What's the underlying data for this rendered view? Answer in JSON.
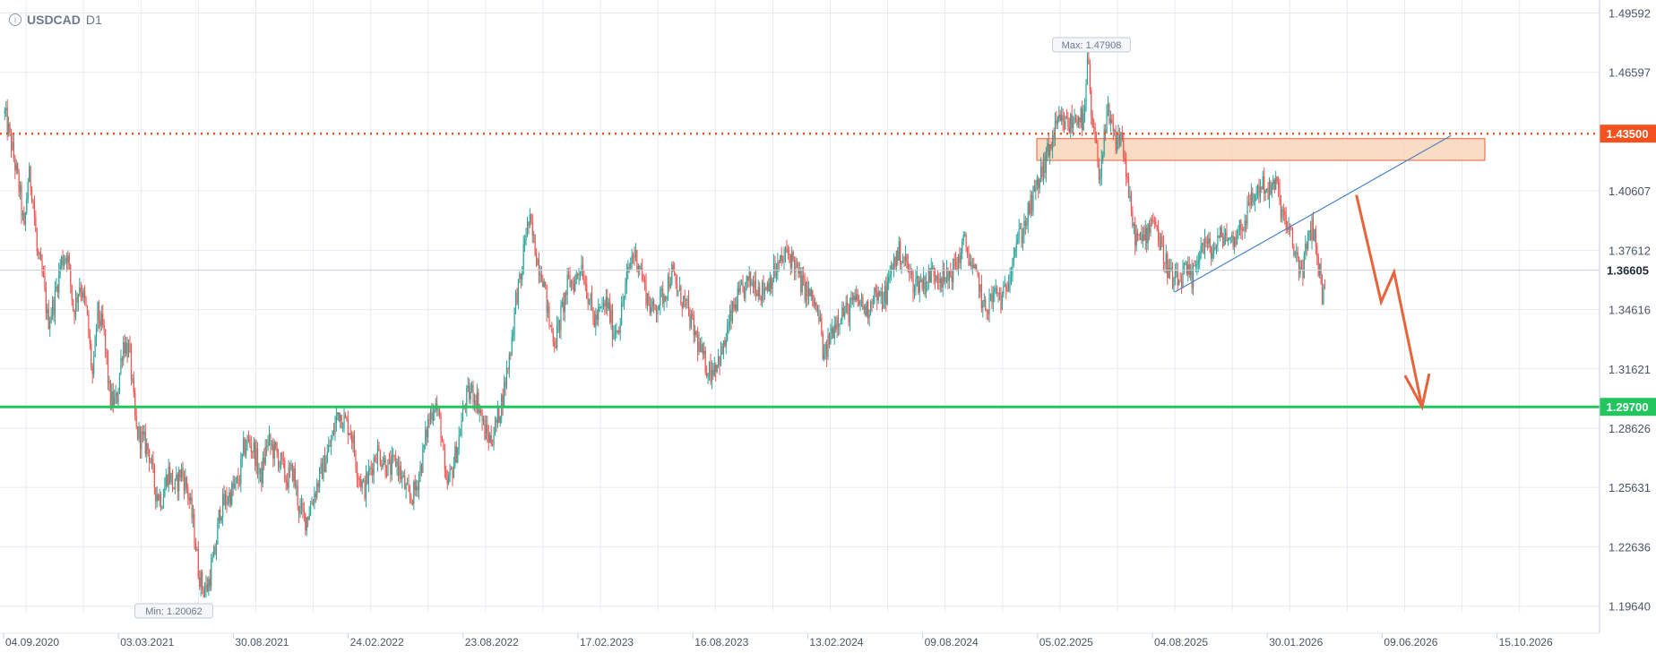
{
  "header": {
    "info_icon": "info-icon",
    "symbol": "USDCAD",
    "timeframe": "D1"
  },
  "colors": {
    "up": "#26a69a",
    "down": "#ef5350",
    "grid": "#e6ebf2",
    "resistance": "#f4511e",
    "support": "#22c55e",
    "zone_fill": "#f8d6b8",
    "zone_stroke": "#e8623a",
    "trend": "#4a84c8",
    "arrow": "#e8623a",
    "axis_text": "#4a5568"
  },
  "chart_data": {
    "type": "candlestick",
    "symbol": "USDCAD",
    "timeframe": "D1",
    "x_ticks": [
      "04.09.2020",
      "03.03.2021",
      "30.08.2021",
      "24.02.2022",
      "23.08.2022",
      "17.02.2023",
      "16.08.2023",
      "13.02.2024",
      "09.08.2024",
      "05.02.2025",
      "04.08.2025",
      "30.01.2026",
      "09.06.2026",
      "15.10.2026"
    ],
    "y_ticks": [
      1.49592,
      1.46597,
      1.40607,
      1.37612,
      1.34616,
      1.31621,
      1.28626,
      1.25631,
      1.22636,
      1.1964
    ],
    "ylim": [
      1.1935,
      1.5025
    ],
    "grid": true,
    "current_price": "1.36605",
    "extremes": {
      "max_label": "Max: 1.47908",
      "max": 1.47908,
      "min_label": "Min: 1.20062",
      "min": 1.20062
    },
    "levels": [
      {
        "name": "resistance",
        "value": 1.435,
        "label": "1.43500",
        "style": "dotted"
      },
      {
        "name": "support",
        "value": 1.297,
        "label": "1.29700",
        "style": "solid"
      }
    ],
    "zone": {
      "from": 1.4215,
      "to": 1.4325
    },
    "path": [
      [
        0,
        1.445
      ],
      [
        6,
        1.43
      ],
      [
        10,
        1.418
      ],
      [
        14,
        1.405
      ],
      [
        18,
        1.385
      ],
      [
        22,
        1.415
      ],
      [
        26,
        1.405
      ],
      [
        30,
        1.375
      ],
      [
        36,
        1.36
      ],
      [
        40,
        1.34
      ],
      [
        46,
        1.35
      ],
      [
        52,
        1.37
      ],
      [
        58,
        1.375
      ],
      [
        64,
        1.345
      ],
      [
        70,
        1.36
      ],
      [
        76,
        1.345
      ],
      [
        82,
        1.31
      ],
      [
        86,
        1.345
      ],
      [
        92,
        1.335
      ],
      [
        98,
        1.3
      ],
      [
        104,
        1.3
      ],
      [
        110,
        1.33
      ],
      [
        116,
        1.325
      ],
      [
        122,
        1.285
      ],
      [
        128,
        1.28
      ],
      [
        134,
        1.275
      ],
      [
        140,
        1.255
      ],
      [
        146,
        1.25
      ],
      [
        152,
        1.265
      ],
      [
        158,
        1.255
      ],
      [
        164,
        1.265
      ],
      [
        170,
        1.255
      ],
      [
        176,
        1.235
      ],
      [
        180,
        1.215
      ],
      [
        184,
        1.205
      ],
      [
        188,
        1.205
      ],
      [
        192,
        1.215
      ],
      [
        196,
        1.225
      ],
      [
        200,
        1.245
      ],
      [
        206,
        1.25
      ],
      [
        212,
        1.255
      ],
      [
        218,
        1.26
      ],
      [
        222,
        1.275
      ],
      [
        226,
        1.28
      ],
      [
        232,
        1.275
      ],
      [
        238,
        1.26
      ],
      [
        244,
        1.28
      ],
      [
        250,
        1.275
      ],
      [
        256,
        1.27
      ],
      [
        262,
        1.26
      ],
      [
        268,
        1.265
      ],
      [
        274,
        1.245
      ],
      [
        280,
        1.24
      ],
      [
        286,
        1.25
      ],
      [
        292,
        1.26
      ],
      [
        298,
        1.27
      ],
      [
        304,
        1.28
      ],
      [
        310,
        1.295
      ],
      [
        316,
        1.29
      ],
      [
        322,
        1.285
      ],
      [
        328,
        1.265
      ],
      [
        334,
        1.255
      ],
      [
        340,
        1.265
      ],
      [
        346,
        1.275
      ],
      [
        352,
        1.27
      ],
      [
        358,
        1.265
      ],
      [
        364,
        1.27
      ],
      [
        370,
        1.26
      ],
      [
        376,
        1.25
      ],
      [
        382,
        1.255
      ],
      [
        388,
        1.27
      ],
      [
        394,
        1.29
      ],
      [
        400,
        1.3
      ],
      [
        406,
        1.285
      ],
      [
        410,
        1.255
      ],
      [
        416,
        1.265
      ],
      [
        422,
        1.28
      ],
      [
        428,
        1.3
      ],
      [
        434,
        1.305
      ],
      [
        440,
        1.3
      ],
      [
        446,
        1.285
      ],
      [
        452,
        1.28
      ],
      [
        458,
        1.29
      ],
      [
        464,
        1.305
      ],
      [
        470,
        1.325
      ],
      [
        476,
        1.355
      ],
      [
        480,
        1.36
      ],
      [
        484,
        1.385
      ],
      [
        488,
        1.39
      ],
      [
        492,
        1.38
      ],
      [
        496,
        1.37
      ],
      [
        500,
        1.365
      ],
      [
        506,
        1.34
      ],
      [
        512,
        1.33
      ],
      [
        518,
        1.345
      ],
      [
        524,
        1.36
      ],
      [
        530,
        1.36
      ],
      [
        536,
        1.37
      ],
      [
        542,
        1.355
      ],
      [
        548,
        1.34
      ],
      [
        554,
        1.345
      ],
      [
        560,
        1.35
      ],
      [
        566,
        1.335
      ],
      [
        572,
        1.34
      ],
      [
        578,
        1.36
      ],
      [
        584,
        1.375
      ],
      [
        590,
        1.37
      ],
      [
        596,
        1.355
      ],
      [
        602,
        1.345
      ],
      [
        608,
        1.35
      ],
      [
        614,
        1.355
      ],
      [
        620,
        1.365
      ],
      [
        626,
        1.355
      ],
      [
        632,
        1.35
      ],
      [
        638,
        1.34
      ],
      [
        644,
        1.33
      ],
      [
        650,
        1.32
      ],
      [
        656,
        1.315
      ],
      [
        662,
        1.32
      ],
      [
        668,
        1.325
      ],
      [
        674,
        1.34
      ],
      [
        680,
        1.35
      ],
      [
        686,
        1.355
      ],
      [
        692,
        1.36
      ],
      [
        698,
        1.36
      ],
      [
        704,
        1.355
      ],
      [
        710,
        1.36
      ],
      [
        716,
        1.365
      ],
      [
        722,
        1.37
      ],
      [
        728,
        1.375
      ],
      [
        734,
        1.37
      ],
      [
        740,
        1.36
      ],
      [
        746,
        1.355
      ],
      [
        752,
        1.35
      ],
      [
        758,
        1.34
      ],
      [
        762,
        1.32
      ],
      [
        766,
        1.33
      ],
      [
        772,
        1.34
      ],
      [
        778,
        1.345
      ],
      [
        784,
        1.345
      ],
      [
        790,
        1.35
      ],
      [
        796,
        1.35
      ],
      [
        802,
        1.345
      ],
      [
        808,
        1.355
      ],
      [
        814,
        1.35
      ],
      [
        820,
        1.355
      ],
      [
        826,
        1.37
      ],
      [
        832,
        1.375
      ],
      [
        838,
        1.37
      ],
      [
        844,
        1.36
      ],
      [
        850,
        1.36
      ],
      [
        856,
        1.36
      ],
      [
        862,
        1.365
      ],
      [
        868,
        1.365
      ],
      [
        874,
        1.36
      ],
      [
        880,
        1.365
      ],
      [
        886,
        1.37
      ],
      [
        892,
        1.38
      ],
      [
        896,
        1.375
      ],
      [
        900,
        1.365
      ],
      [
        906,
        1.36
      ],
      [
        910,
        1.345
      ],
      [
        916,
        1.35
      ],
      [
        922,
        1.355
      ],
      [
        928,
        1.35
      ],
      [
        934,
        1.365
      ],
      [
        940,
        1.38
      ],
      [
        946,
        1.385
      ],
      [
        952,
        1.395
      ],
      [
        958,
        1.405
      ],
      [
        964,
        1.415
      ],
      [
        970,
        1.425
      ],
      [
        976,
        1.435
      ],
      [
        980,
        1.44
      ],
      [
        986,
        1.44
      ],
      [
        992,
        1.44
      ],
      [
        998,
        1.445
      ],
      [
        1004,
        1.44
      ],
      [
        1007,
        1.475
      ],
      [
        1010,
        1.445
      ],
      [
        1014,
        1.43
      ],
      [
        1018,
        1.415
      ],
      [
        1022,
        1.43
      ],
      [
        1026,
        1.445
      ],
      [
        1030,
        1.435
      ],
      [
        1034,
        1.43
      ],
      [
        1038,
        1.435
      ],
      [
        1042,
        1.42
      ],
      [
        1046,
        1.4
      ],
      [
        1050,
        1.385
      ],
      [
        1056,
        1.38
      ],
      [
        1062,
        1.385
      ],
      [
        1068,
        1.395
      ],
      [
        1074,
        1.38
      ],
      [
        1080,
        1.37
      ],
      [
        1086,
        1.36
      ],
      [
        1092,
        1.36
      ],
      [
        1098,
        1.365
      ],
      [
        1104,
        1.36
      ],
      [
        1110,
        1.375
      ],
      [
        1116,
        1.38
      ],
      [
        1122,
        1.375
      ],
      [
        1128,
        1.38
      ],
      [
        1134,
        1.385
      ],
      [
        1140,
        1.38
      ],
      [
        1146,
        1.385
      ],
      [
        1152,
        1.39
      ],
      [
        1158,
        1.4
      ],
      [
        1164,
        1.405
      ],
      [
        1170,
        1.41
      ],
      [
        1176,
        1.405
      ],
      [
        1182,
        1.41
      ],
      [
        1188,
        1.395
      ],
      [
        1194,
        1.385
      ],
      [
        1200,
        1.375
      ],
      [
        1206,
        1.365
      ],
      [
        1212,
        1.38
      ],
      [
        1216,
        1.39
      ],
      [
        1220,
        1.375
      ],
      [
        1224,
        1.36
      ],
      [
        1226,
        1.35
      ],
      [
        1228,
        1.366
      ]
    ],
    "annotations": {
      "trendline": {
        "from": [
          1088,
          1.355
        ],
        "to": [
          1345,
          1.434
        ]
      },
      "forecast_arrow": [
        [
          1257,
          1.404
        ],
        [
          1280,
          1.35
        ],
        [
          1292,
          1.365
        ],
        [
          1318,
          1.297
        ]
      ]
    }
  }
}
